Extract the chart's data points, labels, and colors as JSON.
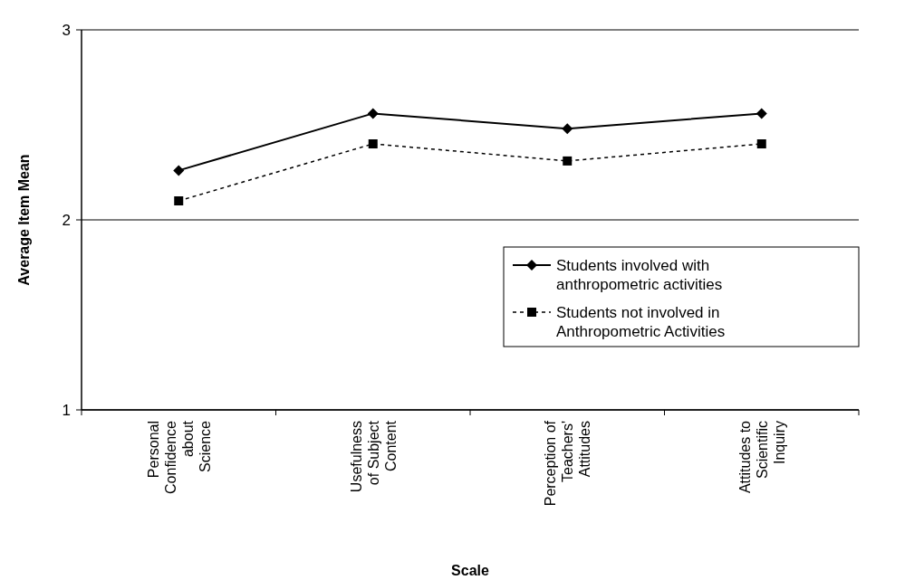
{
  "chart_data": {
    "type": "line",
    "xlabel": "Scale",
    "ylabel": "Average Item Mean",
    "categories": [
      "Personal\nConfidence\nabout\nScience",
      "Usefulness\nof Subject\nContent",
      "Perception of\nTeachers'\nAttitudes",
      "Attitudes to\nScientific\nInquiry"
    ],
    "series": [
      {
        "name": "Students involved with\nanthropometric activities",
        "color": "#000000",
        "values": [
          2.26,
          2.56,
          2.48,
          2.56
        ],
        "marker": "diamond",
        "line_style": "solid"
      },
      {
        "name": "Students not involved in\nAnthropometric Activities",
        "color": "#000000",
        "values": [
          2.1,
          2.4,
          2.31,
          2.4
        ],
        "marker": "square",
        "line_style": "dashed"
      }
    ],
    "ylim": [
      1,
      3
    ],
    "yticks": [
      1,
      2,
      3
    ],
    "grid": "y",
    "legend": "bottom right"
  }
}
